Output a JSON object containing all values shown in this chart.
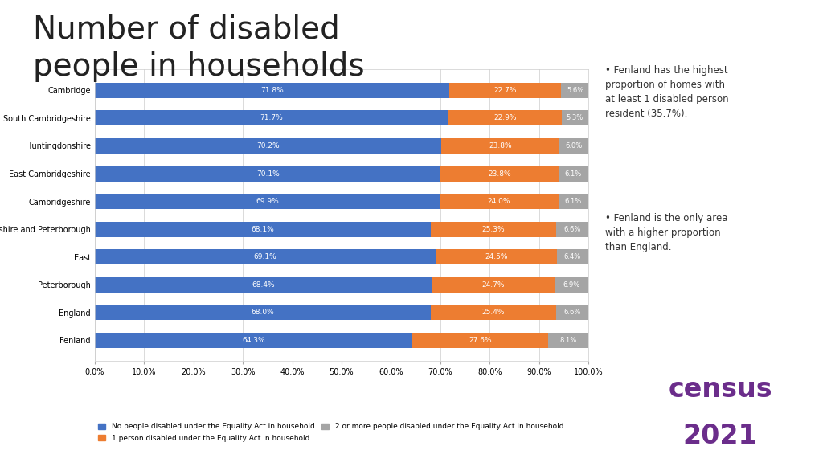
{
  "categories": [
    "Cambridge",
    "South Cambridgeshire",
    "Huntingdonshire",
    "East Cambridgeshire",
    "Cambridgeshire",
    "Cambridgeshire and Peterborough",
    "East",
    "Peterborough",
    "England",
    "Fenland"
  ],
  "no_disabled": [
    71.8,
    71.7,
    70.2,
    70.1,
    69.9,
    68.1,
    69.1,
    68.4,
    68.0,
    64.3
  ],
  "one_disabled": [
    22.7,
    22.9,
    23.8,
    23.8,
    24.0,
    25.3,
    24.5,
    24.7,
    25.4,
    27.6
  ],
  "two_plus_disabled": [
    5.6,
    5.3,
    6.0,
    6.1,
    6.1,
    6.6,
    6.4,
    6.9,
    6.6,
    8.1
  ],
  "color_no": "#4472C4",
  "color_one": "#ED7D31",
  "color_two": "#A5A5A5",
  "legend_no": "No people disabled under the Equality Act in household",
  "legend_one": "1 person disabled under the Equality Act in household",
  "legend_two": "2 or more people disabled under the Equality Act in household",
  "title": "Number of disabled\npeople in households",
  "title_fontsize": 28,
  "bg_color": "#FFFFFF",
  "chart_bg": "#FFFFFF",
  "bar_height": 0.55,
  "xlim": [
    0,
    100
  ],
  "xtick_labels": [
    "0.0%",
    "10.0%",
    "20.0%",
    "30.0%",
    "40.0%",
    "50.0%",
    "60.0%",
    "70.0%",
    "80.0%",
    "90.0%",
    "100.0%"
  ],
  "xtick_vals": [
    0,
    10,
    20,
    30,
    40,
    50,
    60,
    70,
    80,
    90,
    100
  ],
  "bullet1": "Fenland has the highest\nproportion of homes with\nat least 1 disabled person\nresident (35.7%).",
  "bullet2": "Fenland is the only area\nwith a higher proportion\nthan England.",
  "census_color": "#6B2D8B"
}
